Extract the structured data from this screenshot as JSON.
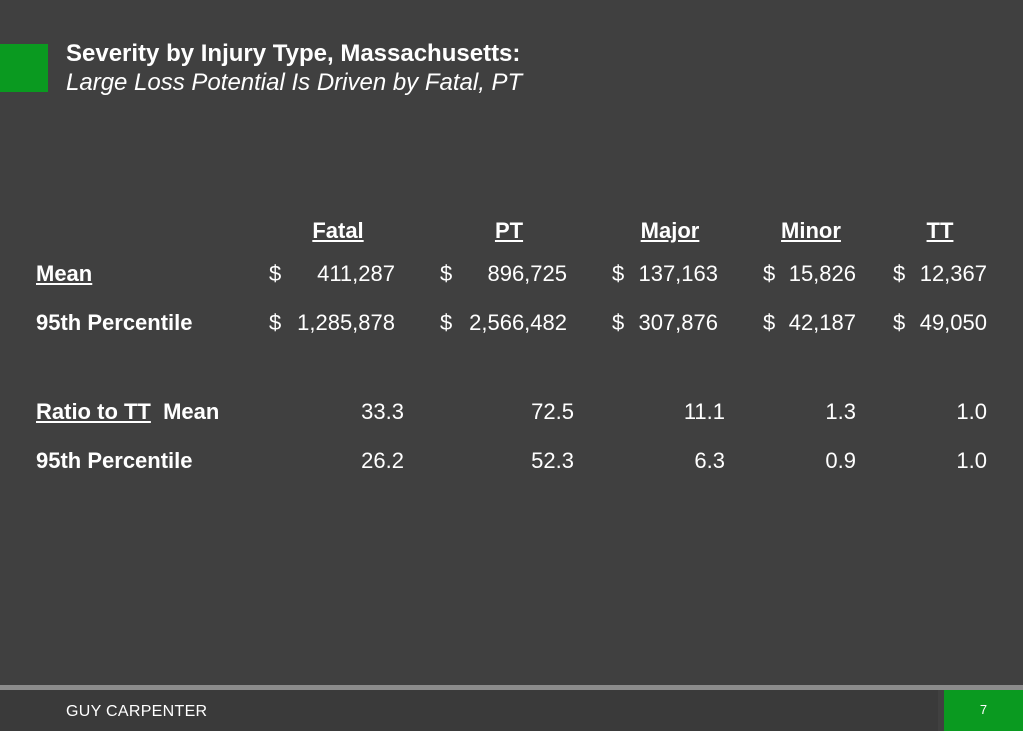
{
  "slide": {
    "title": "Severity by Injury Type, Massachusetts:",
    "subtitle": "Large Loss Potential Is Driven by Fatal, PT"
  },
  "table": {
    "columns": [
      "Fatal",
      "PT",
      "Major",
      "Minor",
      "TT"
    ],
    "rows": {
      "mean": {
        "label": "Mean",
        "values": [
          {
            "currency": "$",
            "amount": "411,287"
          },
          {
            "currency": "$",
            "amount": "896,725"
          },
          {
            "currency": "$",
            "amount": "137,163"
          },
          {
            "currency": "$",
            "amount": "15,826"
          },
          {
            "currency": "$",
            "amount": "12,367"
          }
        ]
      },
      "p95": {
        "label": "95th Percentile",
        "values": [
          {
            "currency": "$",
            "amount": "1,285,878"
          },
          {
            "currency": "$",
            "amount": "2,566,482"
          },
          {
            "currency": "$",
            "amount": "307,876"
          },
          {
            "currency": "$",
            "amount": "42,187"
          },
          {
            "currency": "$",
            "amount": "49,050"
          }
        ]
      },
      "ratio_mean": {
        "label_prefix": "Ratio to TT",
        "label": "Mean",
        "values": [
          "33.3",
          "72.5",
          "11.1",
          "1.3",
          "1.0"
        ]
      },
      "ratio_p95": {
        "label": "95th Percentile",
        "values": [
          "26.2",
          "52.3",
          "6.3",
          "0.9",
          "1.0"
        ]
      }
    }
  },
  "footer": {
    "company": "GUY CARPENTER",
    "page_number": "7"
  },
  "colors": {
    "background": "#404040",
    "accent_green": "#0a9a20",
    "text": "#ffffff"
  }
}
